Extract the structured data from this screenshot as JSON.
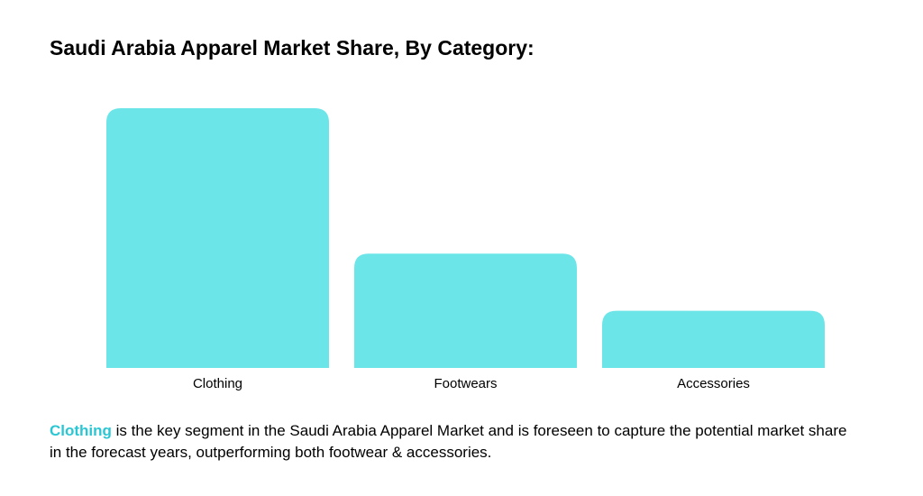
{
  "title": "Saudi Arabia Apparel Market Share, By Category:",
  "chart_data": {
    "type": "bar",
    "title": "",
    "xlabel": "",
    "ylabel": "",
    "categories": [
      "Clothing",
      "Footwears",
      "Accessories"
    ],
    "values": [
      100,
      44,
      22
    ],
    "ylim": [
      0,
      100
    ],
    "grid": false,
    "legend": "none",
    "bar_color": "#6BE5E8"
  },
  "caption": {
    "highlight": "Clothing",
    "highlight_color": "#2BC6D3",
    "rest": " is the key segment in the Saudi Arabia Apparel Market and is foreseen to capture the potential market share in the forecast years, outperforming both footwear & accessories."
  }
}
